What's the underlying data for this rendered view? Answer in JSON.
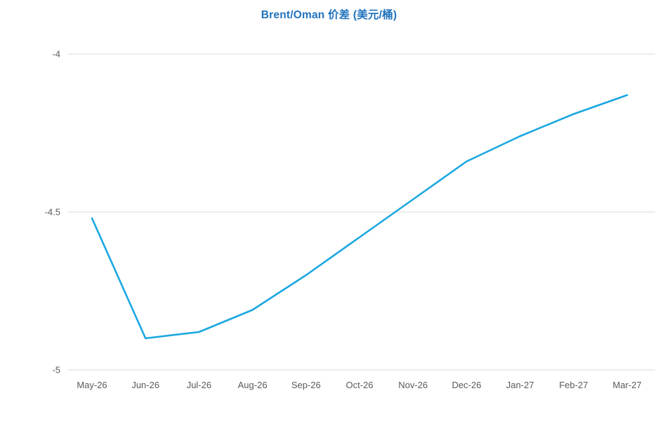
{
  "chart_data": {
    "type": "line",
    "title": "Brent/Oman 价差 (美元/桶)",
    "categories": [
      "May-26",
      "Jun-26",
      "Jul-26",
      "Aug-26",
      "Sep-26",
      "Oct-26",
      "Nov-26",
      "Dec-26",
      "Jan-27",
      "Feb-27",
      "Mar-27"
    ],
    "series": [
      {
        "name": "Brent/Oman spread",
        "values": [
          -4.52,
          -4.9,
          -4.88,
          -4.81,
          -4.7,
          -4.58,
          -4.46,
          -4.34,
          -4.26,
          -4.19,
          -4.13
        ]
      }
    ],
    "xlabel": "",
    "ylabel": "",
    "ylim": [
      -5,
      -4
    ],
    "yticks": [
      {
        "value": -4,
        "label": "-4"
      },
      {
        "value": -4.5,
        "label": "-4.5"
      },
      {
        "value": -5,
        "label": "-5"
      }
    ],
    "grid": "horizontal",
    "legend_position": "none",
    "colors": {
      "line": "#1CA7E0",
      "title": "#2173BE",
      "axis_text": "#595959",
      "gridline": "#D9D9D9",
      "background": "#FFFFFF"
    }
  }
}
